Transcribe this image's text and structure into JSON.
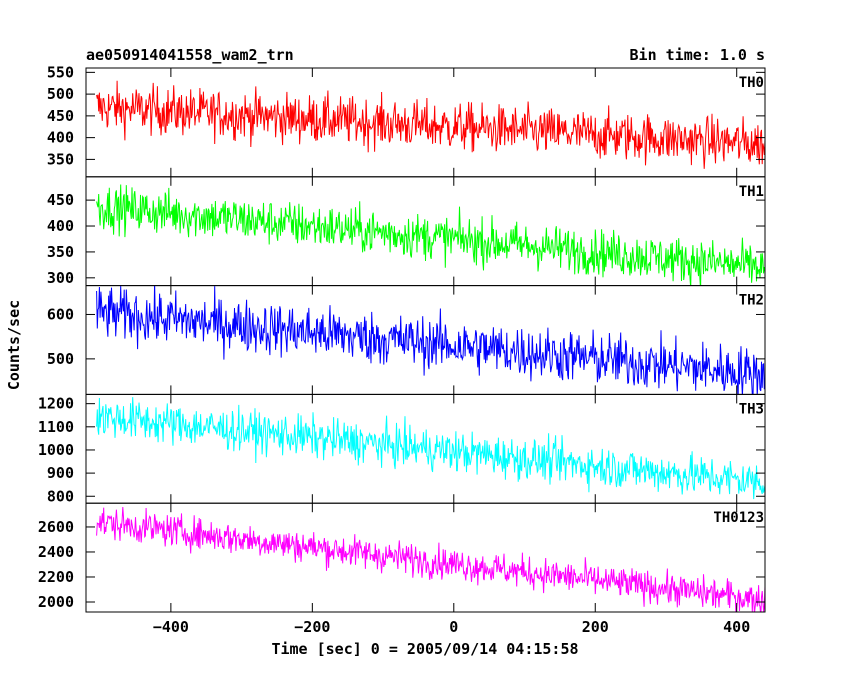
{
  "chart_data": {
    "type": "line",
    "title": "ae050914041558_wam2_trn",
    "subtitle": "Bin time: 1.0 s",
    "xlabel": "Time [sec] 0 = 2005/09/14 04:15:58",
    "ylabel": "Counts/sec",
    "xlim": [
      -520,
      440
    ],
    "x_range": [
      -505,
      440
    ],
    "x_ticks": [
      -400,
      -200,
      0,
      200,
      400
    ],
    "x_tick_labels": [
      "−400",
      "−200",
      "0",
      "200",
      "400"
    ],
    "grid": false,
    "panels": [
      {
        "name": "TH0",
        "color": "#ff0000",
        "ylim": [
          310,
          560
        ],
        "y_ticks": [
          350,
          400,
          450,
          500,
          550
        ],
        "y_tick_labels": [
          "350",
          "400",
          "450",
          "500",
          "550"
        ],
        "trend_start": 470,
        "trend_end": 385,
        "noise": 28
      },
      {
        "name": "TH1",
        "color": "#00ff00",
        "ylim": [
          285,
          495
        ],
        "y_ticks": [
          300,
          350,
          400,
          450
        ],
        "y_tick_labels": [
          "300",
          "350",
          "400",
          "450"
        ],
        "trend_start": 438,
        "trend_end": 320,
        "noise": 22
      },
      {
        "name": "TH2",
        "color": "#0000ff",
        "ylim": [
          420,
          665
        ],
        "y_ticks": [
          500,
          600
        ],
        "y_tick_labels": [
          "500",
          "600"
        ],
        "trend_start": 605,
        "trend_end": 465,
        "noise": 30
      },
      {
        "name": "TH3",
        "color": "#00ffff",
        "ylim": [
          770,
          1240
        ],
        "y_ticks": [
          800,
          900,
          1000,
          1100,
          1200
        ],
        "y_tick_labels": [
          "800",
          "900",
          "1000",
          "1100",
          "1200"
        ],
        "trend_start": 1145,
        "trend_end": 860,
        "noise": 45
      },
      {
        "name": "TH0123",
        "color": "#ff00ff",
        "ylim": [
          1920,
          2790
        ],
        "y_ticks": [
          2000,
          2200,
          2400,
          2600
        ],
        "y_tick_labels": [
          "2000",
          "2200",
          "2400",
          "2600"
        ],
        "trend_start": 2640,
        "trend_end": 2015,
        "noise": 65
      }
    ]
  }
}
